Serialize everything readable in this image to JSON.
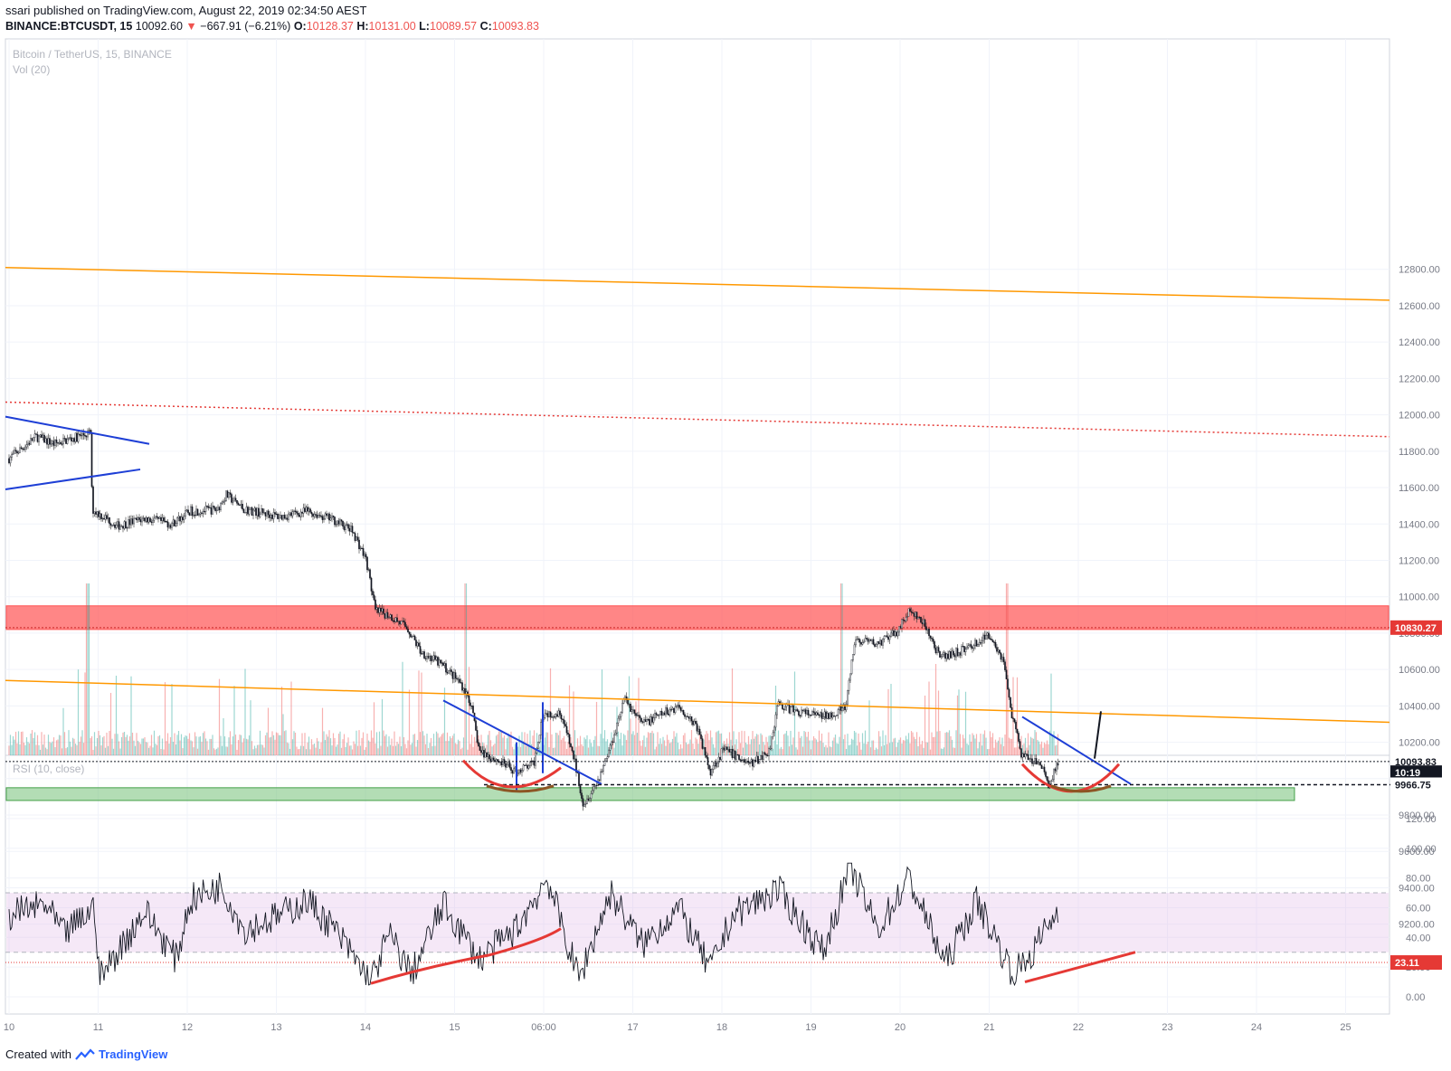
{
  "header": {
    "published": "ssari published on TradingView.com, August 22, 2019 02:34:50 AEST",
    "symbol": "BINANCE:BTCUSDT, 15",
    "last": "10092.60",
    "change": "−667.91 (−6.21%)",
    "open_label": "O:",
    "open": "10128.37",
    "high_label": "H:",
    "high": "10131.00",
    "low_label": "L:",
    "low": "10089.57",
    "close_label": "C:",
    "close": "10093.83"
  },
  "main_pane": {
    "title": "Bitcoin / TetherUS, 15, BINANCE",
    "volume_label": "Vol (20)"
  },
  "rsi_pane": {
    "title": "RSI (10, close)"
  },
  "footer": {
    "created_with": "Created with",
    "brand": "TradingView"
  },
  "chart_data": [
    {
      "type": "candlestick",
      "title": "Bitcoin / TetherUS, 15, BINANCE",
      "y_ticks": [
        "12800.00",
        "12600.00",
        "12400.00",
        "12200.00",
        "12000.00",
        "11800.00",
        "11600.00",
        "11400.00",
        "11200.00",
        "11000.00",
        "10800.00",
        "10600.00",
        "10400.00",
        "10200.00",
        "10000.00",
        "9800.00",
        "9600.00",
        "9400.00",
        "9200.00"
      ],
      "ylim": [
        9150,
        12900
      ],
      "x_ticks": [
        "10",
        "11",
        "12",
        "13",
        "14",
        "15",
        "06:00",
        "17",
        "18",
        "19",
        "20",
        "21",
        "22",
        "23",
        "24",
        "25"
      ],
      "price_path": [
        [
          0,
          11760
        ],
        [
          30,
          11880
        ],
        [
          50,
          11840
        ],
        [
          90,
          11900
        ],
        [
          92,
          11480
        ],
        [
          120,
          11390
        ],
        [
          150,
          11430
        ],
        [
          180,
          11400
        ],
        [
          200,
          11470
        ],
        [
          230,
          11480
        ],
        [
          240,
          11560
        ],
        [
          260,
          11480
        ],
        [
          300,
          11440
        ],
        [
          330,
          11470
        ],
        [
          360,
          11420
        ],
        [
          380,
          11360
        ],
        [
          395,
          11200
        ],
        [
          405,
          10920
        ],
        [
          420,
          10900
        ],
        [
          440,
          10830
        ],
        [
          455,
          10700
        ],
        [
          480,
          10620
        ],
        [
          500,
          10520
        ],
        [
          510,
          10420
        ],
        [
          520,
          10150
        ],
        [
          540,
          10100
        ],
        [
          560,
          10040
        ],
        [
          580,
          10080
        ],
        [
          590,
          10360
        ],
        [
          610,
          10360
        ],
        [
          625,
          10100
        ],
        [
          635,
          9860
        ],
        [
          650,
          9980
        ],
        [
          665,
          10180
        ],
        [
          680,
          10440
        ],
        [
          700,
          10300
        ],
        [
          720,
          10350
        ],
        [
          740,
          10400
        ],
        [
          760,
          10290
        ],
        [
          775,
          10040
        ],
        [
          790,
          10160
        ],
        [
          820,
          10080
        ],
        [
          840,
          10150
        ],
        [
          850,
          10410
        ],
        [
          870,
          10370
        ],
        [
          900,
          10340
        ],
        [
          925,
          10390
        ],
        [
          935,
          10760
        ],
        [
          960,
          10740
        ],
        [
          980,
          10800
        ],
        [
          995,
          10920
        ],
        [
          1010,
          10860
        ],
        [
          1030,
          10660
        ],
        [
          1060,
          10720
        ],
        [
          1085,
          10790
        ],
        [
          1100,
          10640
        ],
        [
          1108,
          10360
        ],
        [
          1120,
          10120
        ],
        [
          1140,
          10080
        ],
        [
          1150,
          9960
        ],
        [
          1160,
          10100
        ]
      ],
      "annotations": {
        "resistance_zone": [
          10820,
          10950
        ],
        "support_zone": [
          9880,
          9950
        ],
        "price_labels": [
          "10830.27",
          "10093.83",
          "10:19",
          "9966.75"
        ]
      }
    },
    {
      "type": "line",
      "title": "RSI (10, close)",
      "y_ticks": [
        "120.00",
        "100.00",
        "80.00",
        "60.00",
        "40.00",
        "20.00",
        "0.00"
      ],
      "ylim": [
        -15,
        122
      ],
      "bands": [
        30,
        70
      ],
      "current_value": "23.11",
      "x": [
        0,
        40,
        60,
        95,
        100,
        150,
        185,
        200,
        235,
        260,
        300,
        330,
        360,
        400,
        420,
        445,
        480,
        520,
        560,
        595,
        610,
        630,
        665,
        700,
        740,
        775,
        800,
        850,
        900,
        930,
        960,
        995,
        1035,
        1070,
        1110,
        1130,
        1150,
        1165
      ],
      "values": [
        55,
        62,
        42,
        60,
        12,
        58,
        25,
        65,
        75,
        45,
        55,
        65,
        45,
        10,
        42,
        15,
        62,
        25,
        45,
        80,
        50,
        12,
        70,
        35,
        60,
        18,
        55,
        72,
        30,
        88,
        45,
        80,
        22,
        65,
        15,
        28,
        50,
        60
      ]
    }
  ]
}
